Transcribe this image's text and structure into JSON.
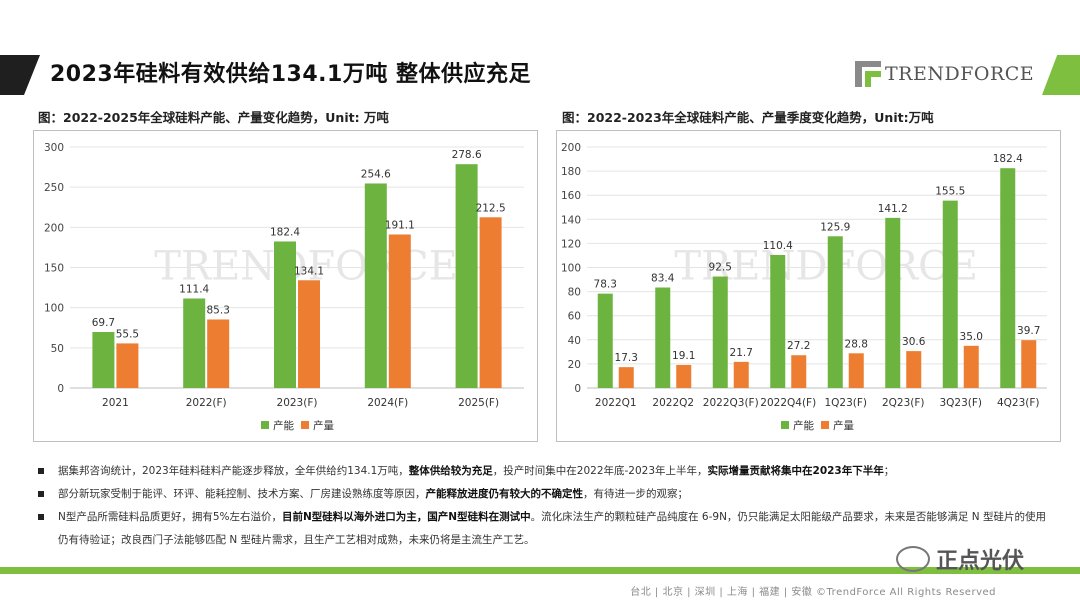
{
  "page": {
    "title": "2023年硅料有效供给134.1万吨  整体供应充足",
    "logo_text": "TRENDFORCE",
    "footer": "台北 | 北京 | 深圳 | 上海 | 福建 | 安徽     ©TrendForce All Rights Reserved",
    "wechat_label": "正点光伏"
  },
  "colors": {
    "capacity": "#6db33f",
    "output": "#ed7d31",
    "accent": "#7fbf3f"
  },
  "chart_data": [
    {
      "type": "bar",
      "title": "图：2022-2025年全球硅料产能、产量变化趋势，Unit: 万吨",
      "categories": [
        "2021",
        "2022(F)",
        "2023(F)",
        "2024(F)",
        "2025(F)"
      ],
      "series": [
        {
          "name": "产能",
          "values": [
            69.7,
            111.4,
            182.4,
            254.6,
            278.6
          ]
        },
        {
          "name": "产量",
          "values": [
            55.5,
            85.3,
            134.1,
            191.1,
            212.5
          ]
        }
      ],
      "ylim": [
        0,
        300
      ],
      "yticks": [
        0,
        50,
        100,
        150,
        200,
        250,
        300
      ],
      "legend": "bottom",
      "grid": true
    },
    {
      "type": "bar",
      "title": "图：2022-2023年全球硅料产能、产量季度变化趋势，Unit:万吨",
      "categories": [
        "2022Q1",
        "2022Q2",
        "2022Q3(F)",
        "2022Q4(F)",
        "1Q23(F)",
        "2Q23(F)",
        "3Q23(F)",
        "4Q23(F)"
      ],
      "series": [
        {
          "name": "产能",
          "values": [
            78.3,
            83.4,
            92.5,
            110.4,
            125.9,
            141.2,
            155.5,
            182.4
          ]
        },
        {
          "name": "产量",
          "values": [
            17.3,
            19.1,
            21.7,
            27.2,
            28.8,
            30.6,
            35.0,
            39.7
          ]
        }
      ],
      "ylim": [
        0,
        200
      ],
      "yticks": [
        0,
        20,
        40,
        60,
        80,
        100,
        120,
        140,
        160,
        180,
        200
      ],
      "legend": "bottom",
      "grid": true
    }
  ],
  "bullets": [
    [
      {
        "t": "据集邦咨询统计，2023年硅料硅料产能逐步释放，全年供给约134.1万吨，",
        "b": false
      },
      {
        "t": "整体供给较为充足",
        "b": true
      },
      {
        "t": "，投产时间集中在2022年底-2023年上半年，",
        "b": false
      },
      {
        "t": "实际增量贡献将集中在2023年下半年",
        "b": true
      },
      {
        "t": "；",
        "b": false
      }
    ],
    [
      {
        "t": "部分新玩家受制于能评、环评、能耗控制、技术方案、厂房建设熟练度等原因，",
        "b": false
      },
      {
        "t": "产能释放进度仍有较大的不确定性",
        "b": true
      },
      {
        "t": "，有待进一步的观察；",
        "b": false
      }
    ],
    [
      {
        "t": "N型产品所需硅料品质更好，拥有5%左右溢价，",
        "b": false
      },
      {
        "t": "目前N型硅料以海外进口为主，国产N型硅料在测试中",
        "b": true
      },
      {
        "t": "。流化床法生产的颗粒硅产品纯度在 6-9N，仍只能满足太阳能级产品要求，未来是否能够满足 N 型硅片的使用仍有待验证；改良西门子法能够匹配 N 型硅片需求，且生产工艺相对成熟，未来仍将是主流生产工艺。",
        "b": false
      }
    ]
  ]
}
